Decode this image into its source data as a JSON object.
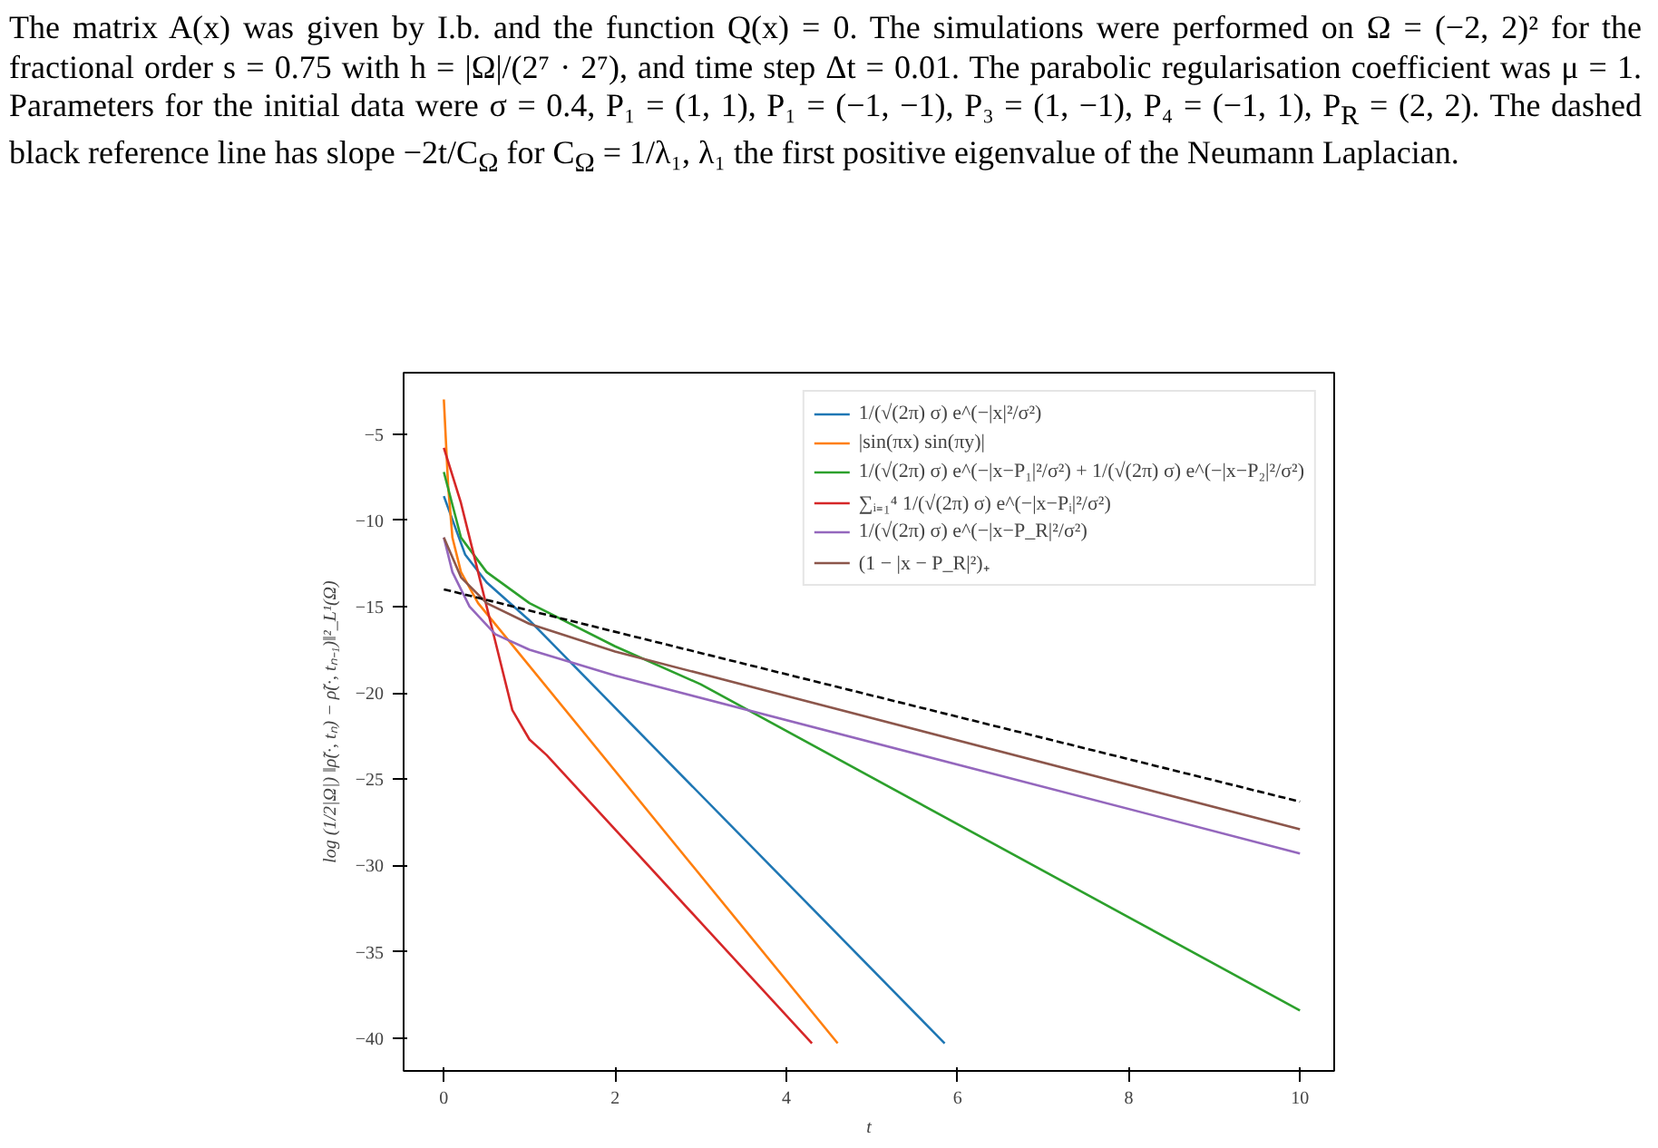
{
  "chart_data": {
    "type": "line",
    "xlabel": "t",
    "ylabel": "log (1/2|Ω|) ‖ρ̃(·, tₙ) − ρ̃(·, tₙ₋₁)‖²_L¹(Ω)",
    "annotations": [
      "The matrix A(x) was given by I.b. and the function Q(x) = 0. The simulations were performed on Ω = (−2, 2)² for the fractional order s = 0.75 with h = |Ω|/(2⁷ · 2⁷), and time step Δt = 0.01. The parabolic regularisation coefficient was μ = 1. Parameters for the initial data were σ = 0.4, P₁ = (1, 1), P₁ = (−1, −1), P₃ = (1, −1), P₄ = (−1, 1), P$_{R}$ = (2, 2). The dashed black reference line has slope −2t/C$_{Ω}$ for C$_{Ω}$ = 1/λ₁, λ₁ the first positive eigenvalue of the Neumann Laplacian."
    ],
    "xlim": [
      -0.47,
      10.4
    ],
    "ylim": [
      -41.9,
      -1.45
    ],
    "xticks": [
      0,
      2,
      4,
      6,
      8,
      10
    ],
    "yticks": [
      -5,
      -10,
      -15,
      -20,
      -25,
      -30,
      -35,
      -40
    ],
    "grid": false,
    "legend": "top right",
    "marker": "none",
    "line_style": "solid",
    "series": [
      {
        "name": "1/(√(2π) σ) e^(−|x|²/σ²)",
        "color": "#1f77b4",
        "x": [
          0,
          0.25,
          0.5,
          1,
          5.85
        ],
        "values": [
          -8.6,
          -12,
          -13.6,
          -15.8,
          -40.3
        ]
      },
      {
        "name": "|sin(πx) sin(πy)|",
        "color": "#ff7f0e",
        "x": [
          0,
          0.05,
          0.1,
          0.2,
          0.4,
          4.6
        ],
        "values": [
          -3,
          -8,
          -11,
          -13,
          -14.8,
          -40.3
        ]
      },
      {
        "name": "1/(√(2π) σ) e^(−|x−P₁|²/σ²) + 1/(√(2π) σ) e^(−|x−P₂|²/σ²)",
        "color": "#2ca02c",
        "x": [
          0,
          0.2,
          0.5,
          1,
          2,
          3,
          10
        ],
        "values": [
          -7.2,
          -11,
          -13,
          -14.8,
          -17.3,
          -19.5,
          -38.4
        ]
      },
      {
        "name": "∑ᵢ₌₁⁴ 1/(√(2π) σ) e^(−|x−Pᵢ|²/σ²)",
        "color": "#d62728",
        "x": [
          0,
          0.2,
          0.4,
          0.6,
          0.8,
          1.0,
          1.2,
          4.3
        ],
        "values": [
          -5.8,
          -9,
          -13,
          -17,
          -21,
          -22.7,
          -23.6,
          -40.3
        ]
      },
      {
        "name": "1/(√(2π) σ) e^(−|x−P_R|²/σ²)",
        "color": "#9467bd",
        "x": [
          0,
          0.1,
          0.3,
          0.6,
          1,
          2,
          10
        ],
        "values": [
          -11,
          -13,
          -15,
          -16.6,
          -17.5,
          -19,
          -29.3
        ]
      },
      {
        "name": "(1 − |x − P_R|²)₊",
        "color": "#8c564b",
        "x": [
          0,
          0.2,
          0.5,
          1,
          2,
          10
        ],
        "values": [
          -11,
          -13.3,
          -14.8,
          -16,
          -17.6,
          -27.9
        ]
      },
      {
        "color": "#000000",
        "line_style": "dashed",
        "x": [
          0,
          10
        ],
        "values": [
          -14,
          -26.3
        ]
      }
    ]
  }
}
